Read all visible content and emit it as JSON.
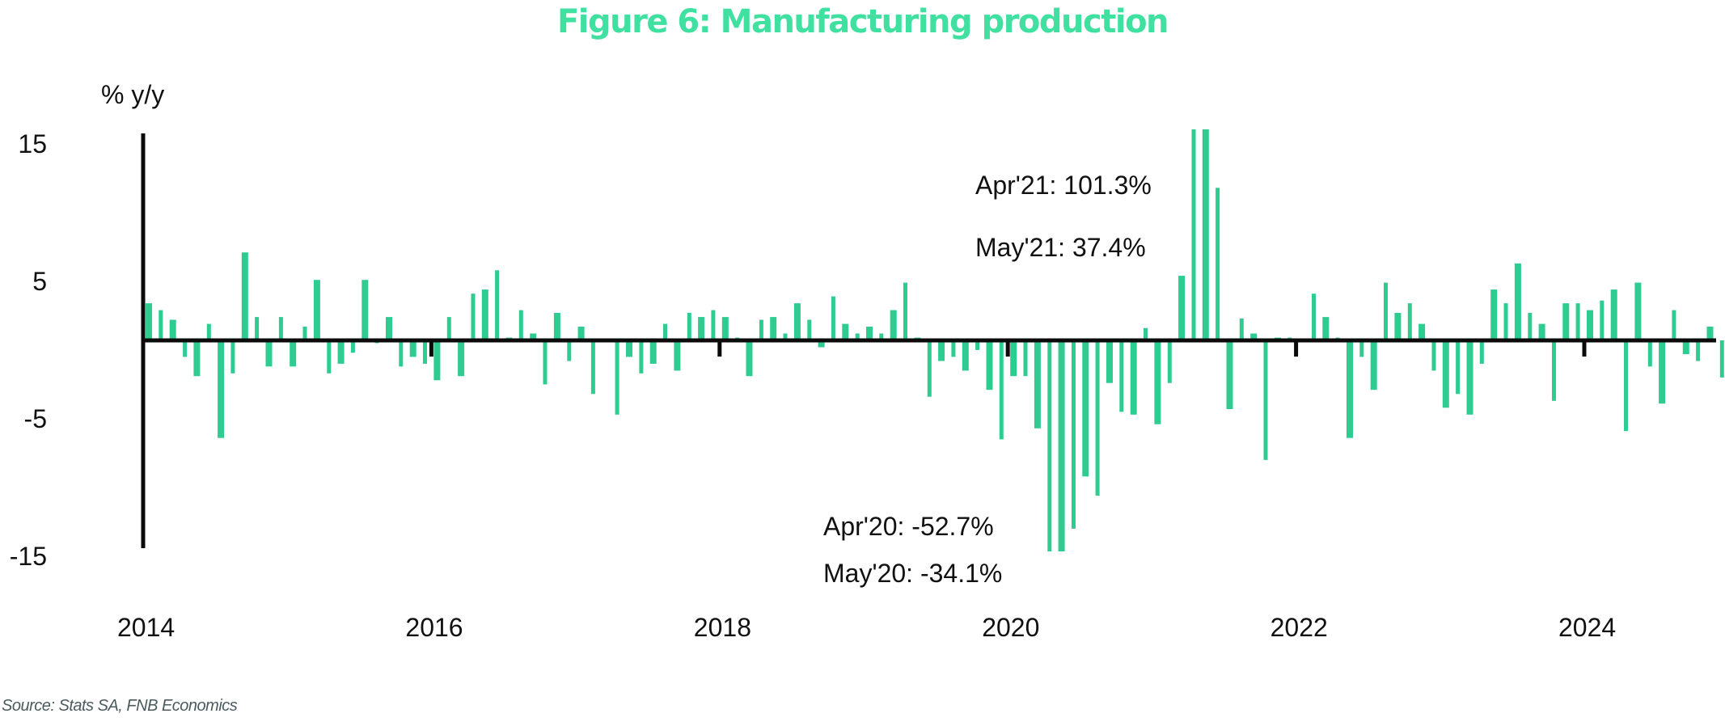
{
  "title": "Figure 6: Manufacturing production",
  "source": "Source: Stats SA, FNB Economics",
  "colors": {
    "bar": "#2ecc91",
    "title": "#3fe0a0",
    "axis": "#0b0b0b"
  },
  "chart_data": {
    "type": "bar",
    "title": "Figure 6: Manufacturing production",
    "xlabel": "",
    "ylabel": "% y/y",
    "ylim": [
      -15,
      16
    ],
    "yticks": [
      15,
      5,
      -5,
      -15
    ],
    "ytick_labels": [
      "15",
      "5",
      "-5",
      "-15"
    ],
    "xtick_labels": [
      "2014",
      "2016",
      "2018",
      "2020",
      "2022",
      "2024"
    ],
    "x_start": "Jan 2014",
    "x_end": "Dec 2024",
    "frequency": "monthly",
    "grid": false,
    "legend": "none",
    "series": [
      {
        "name": "Manufacturing production % y/y",
        "values": [
          2.7,
          2.2,
          1.5,
          -1.2,
          -2.6,
          1.2,
          -7.1,
          -2.4,
          6.4,
          1.7,
          -1.9,
          1.7,
          -1.9,
          1.0,
          4.4,
          -2.4,
          -1.7,
          -0.9,
          4.4,
          -0.2,
          1.7,
          -1.9,
          -1.2,
          -1.7,
          -2.9,
          1.7,
          -2.6,
          3.4,
          3.7,
          5.1,
          0.2,
          2.2,
          0.5,
          -3.2,
          2.0,
          -1.5,
          1.0,
          -3.9,
          0.0,
          -5.4,
          -1.2,
          -2.4,
          -1.7,
          1.2,
          -2.2,
          2.0,
          1.7,
          2.2,
          1.7,
          0.2,
          -2.6,
          1.5,
          1.7,
          0.5,
          2.7,
          1.5,
          -0.5,
          3.2,
          1.2,
          0.5,
          1.0,
          0.5,
          2.2,
          4.2,
          0.2,
          -4.1,
          -1.5,
          -1.2,
          -2.2,
          -0.7,
          -3.6,
          -7.2,
          -2.6,
          -2.6,
          -6.4,
          -52.7,
          -34.1,
          -13.7,
          -9.9,
          -11.3,
          -3.1,
          -5.2,
          -5.4,
          0.9,
          -6.1,
          -3.1,
          4.7,
          101.3,
          37.4,
          11.1,
          -5.0,
          1.6,
          0.5,
          -8.7,
          0.2,
          0.2,
          0.0,
          3.4,
          1.7,
          0.2,
          -7.1,
          -1.2,
          -3.6,
          4.2,
          2.0,
          2.7,
          1.2,
          -2.2,
          -4.9,
          -3.9,
          -5.4,
          -1.7,
          3.7,
          2.7,
          5.6,
          2.0,
          1.2,
          -4.4,
          2.7,
          2.7,
          2.2,
          2.9,
          3.7,
          -6.6,
          4.2,
          -1.9,
          -4.6,
          2.2,
          -1.0,
          -1.5,
          1.0,
          -2.7
        ]
      }
    ],
    "annotations": [
      {
        "text": "Apr'21: 101.3%",
        "period": "Apr 2021",
        "value": 101.3
      },
      {
        "text": "May'21: 37.4%",
        "period": "May 2021",
        "value": 37.4
      },
      {
        "text": "Apr'20:  -52.7%",
        "period": "Apr 2020",
        "value": -52.7
      },
      {
        "text": "May'20: -34.1%",
        "period": "May 2020",
        "value": -34.1
      }
    ]
  }
}
